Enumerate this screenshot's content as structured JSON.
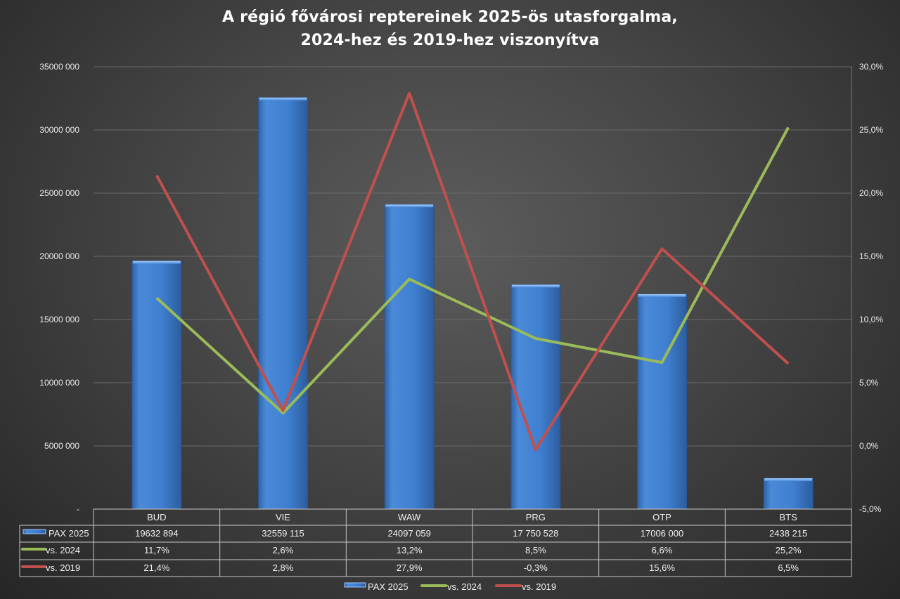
{
  "chart_data": {
    "type": "bar",
    "title_lines": [
      "A régió fővárosi reptereinek 2025-ös utasforgalma,",
      "2024-hez és 2019-hez viszonyítva"
    ],
    "categories": [
      "BUD",
      "VIE",
      "WAW",
      "PRG",
      "OTP",
      "BTS"
    ],
    "series": [
      {
        "name": "PAX 2025",
        "type": "bar",
        "axis": "left",
        "color": "#3f7fd0",
        "values": [
          19632894,
          32559115,
          24097059,
          17750528,
          17006000,
          2438215
        ],
        "labels": [
          "19632 894",
          "32559 115",
          "24097 059",
          "17 750 528",
          "17006 000",
          "2438 215"
        ]
      },
      {
        "name": "vs. 2024",
        "type": "line",
        "axis": "right",
        "color": "#9bbb59",
        "values": [
          11.7,
          2.6,
          13.2,
          8.5,
          6.6,
          25.2
        ],
        "labels": [
          "11,7%",
          "2,6%",
          "13,2%",
          "8,5%",
          "6,6%",
          "25,2%"
        ]
      },
      {
        "name": "vs. 2019",
        "type": "line",
        "axis": "right",
        "color": "#c0504d",
        "values": [
          21.4,
          2.8,
          27.9,
          -0.3,
          15.6,
          6.5
        ],
        "labels": [
          "21,4%",
          "2,8%",
          "27,9%",
          "-0,3%",
          "15,6%",
          "6,5%"
        ]
      }
    ],
    "y_left": {
      "range": [
        0,
        35000000
      ],
      "ticks": [
        0,
        5000000,
        10000000,
        15000000,
        20000000,
        25000000,
        30000000,
        35000000
      ],
      "tick_labels": [
        "-",
        "5000 000",
        "10000 000",
        "15000 000",
        "20000 000",
        "25000 000",
        "30000 000",
        "35000 000"
      ]
    },
    "y_right": {
      "range": [
        -5,
        30
      ],
      "ticks": [
        -5,
        0,
        5,
        10,
        15,
        20,
        25,
        30
      ],
      "tick_labels": [
        "-5,0%",
        "0,0%",
        "5,0%",
        "10,0%",
        "15,0%",
        "20,0%",
        "25,0%",
        "30,0%"
      ]
    },
    "grid": true,
    "legend": "bottom",
    "data_table": true
  }
}
